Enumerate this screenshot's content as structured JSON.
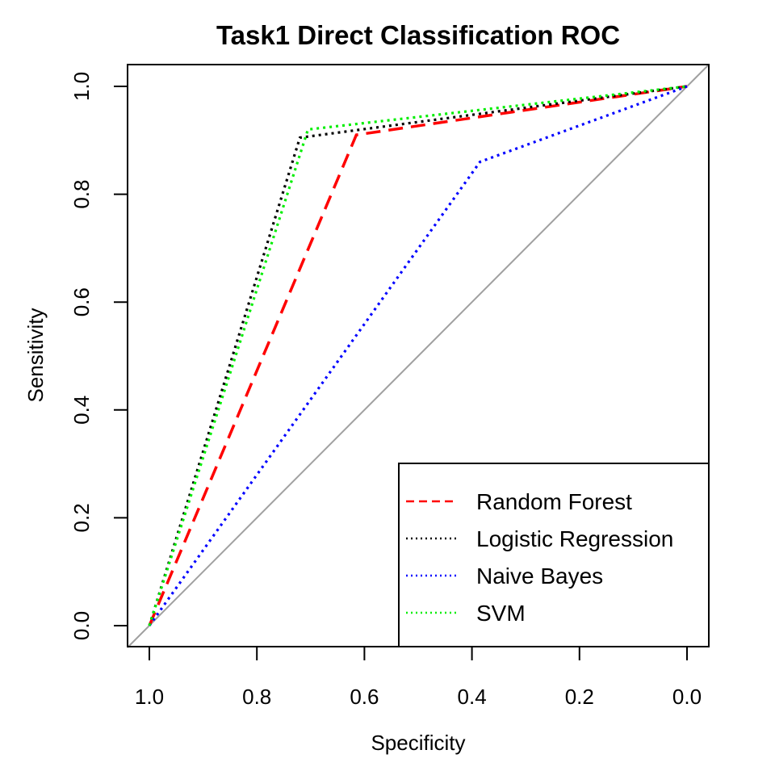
{
  "chart_data": {
    "type": "line",
    "title": "Task1 Direct Classification ROC",
    "xlabel": "Specificity",
    "ylabel": "Sensitivity",
    "x_reversed": true,
    "xlim": [
      1.0,
      0.0
    ],
    "ylim": [
      0.0,
      1.0
    ],
    "xticks": [
      "1.0",
      "0.8",
      "0.6",
      "0.4",
      "0.2",
      "0.0"
    ],
    "yticks": [
      "0.0",
      "0.2",
      "0.4",
      "0.6",
      "0.8",
      "1.0"
    ],
    "grid": false,
    "legend_position": "bottom-right",
    "reference_line": {
      "from": [
        1.0,
        0.0
      ],
      "to": [
        0.0,
        1.0
      ],
      "color": "#a0a0a0"
    },
    "series": [
      {
        "name": "Random Forest",
        "color": "#ff0000",
        "dash": "dashed",
        "points": [
          [
            1.0,
            0.0
          ],
          [
            0.615,
            0.91
          ],
          [
            0.0,
            1.0
          ]
        ]
      },
      {
        "name": "Logistic Regression",
        "color": "#000000",
        "dash": "dotted",
        "points": [
          [
            1.0,
            0.0
          ],
          [
            0.72,
            0.905
          ],
          [
            0.0,
            1.0
          ]
        ]
      },
      {
        "name": "Naive Bayes",
        "color": "#0000ff",
        "dash": "dotted",
        "points": [
          [
            1.0,
            0.0
          ],
          [
            0.385,
            0.86
          ],
          [
            0.0,
            1.0
          ]
        ]
      },
      {
        "name": "SVM",
        "color": "#00ee00",
        "dash": "dotted",
        "points": [
          [
            1.0,
            0.0
          ],
          [
            0.705,
            0.92
          ],
          [
            0.0,
            1.0
          ]
        ]
      }
    ]
  }
}
